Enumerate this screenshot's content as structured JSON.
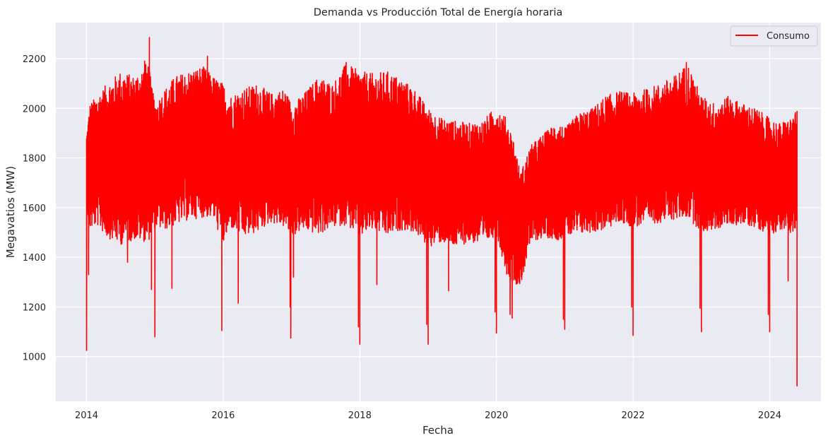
{
  "chart_data": {
    "type": "line",
    "title": "Demanda vs Producción Total de Energía horaria",
    "xlabel": "Fecha",
    "ylabel": "Megavatios (MW)",
    "xlim": [
      2013.55,
      2024.75
    ],
    "ylim": [
      820,
      2345
    ],
    "x_ticks": [
      2014,
      2016,
      2018,
      2020,
      2022,
      2024
    ],
    "x_tick_labels": [
      "2014",
      "2016",
      "2018",
      "2020",
      "2022",
      "2024"
    ],
    "y_ticks": [
      1000,
      1200,
      1400,
      1600,
      1800,
      2000,
      2200
    ],
    "y_tick_labels": [
      "1000",
      "1200",
      "1400",
      "1600",
      "1800",
      "2000",
      "2200"
    ],
    "grid": true,
    "legend": {
      "position": "top-right"
    },
    "background_color": "#EAEAF2",
    "series": [
      {
        "name": "Consumo",
        "color": "#FF0000",
        "envelope_x": [
          2014.0,
          2014.05,
          2014.15,
          2014.3,
          2014.5,
          2014.7,
          2014.9,
          2015.0,
          2015.15,
          2015.3,
          2015.5,
          2015.7,
          2015.85,
          2016.0,
          2016.1,
          2016.3,
          2016.5,
          2016.7,
          2016.9,
          2017.0,
          2017.15,
          2017.4,
          2017.6,
          2017.8,
          2018.0,
          2018.2,
          2018.4,
          2018.6,
          2018.8,
          2019.0,
          2019.2,
          2019.4,
          2019.6,
          2019.8,
          2020.0,
          2020.15,
          2020.25,
          2020.35,
          2020.5,
          2020.7,
          2020.9,
          2021.0,
          2021.2,
          2021.4,
          2021.6,
          2021.8,
          2022.0,
          2022.2,
          2022.4,
          2022.6,
          2022.8,
          2023.0,
          2023.2,
          2023.4,
          2023.6,
          2023.8,
          2024.0,
          2024.15,
          2024.3,
          2024.4
        ],
        "envelope_max": [
          1900,
          2020,
          2050,
          2100,
          2150,
          2130,
          2190,
          2020,
          2080,
          2130,
          2150,
          2170,
          2130,
          2100,
          2050,
          2080,
          2100,
          2060,
          2080,
          2020,
          2050,
          2130,
          2100,
          2180,
          2150,
          2140,
          2150,
          2120,
          2080,
          2000,
          1960,
          1950,
          1940,
          1950,
          2010,
          1960,
          1880,
          1740,
          1850,
          1900,
          1950,
          1920,
          1980,
          2000,
          2050,
          2070,
          2060,
          2080,
          2100,
          2130,
          2180,
          2050,
          2020,
          2050,
          2020,
          2000,
          1960,
          1940,
          1960,
          1990
        ],
        "envelope_min": [
          1600,
          1510,
          1530,
          1480,
          1450,
          1470,
          1460,
          1520,
          1510,
          1530,
          1550,
          1560,
          1560,
          1450,
          1520,
          1480,
          1500,
          1540,
          1520,
          1480,
          1510,
          1490,
          1520,
          1530,
          1480,
          1510,
          1480,
          1510,
          1500,
          1440,
          1460,
          1440,
          1460,
          1450,
          1490,
          1330,
          1300,
          1280,
          1460,
          1480,
          1470,
          1480,
          1490,
          1500,
          1510,
          1540,
          1520,
          1530,
          1540,
          1550,
          1560,
          1500,
          1510,
          1530,
          1530,
          1520,
          1490,
          1510,
          1500,
          1500
        ],
        "dips": [
          {
            "x": 2014.0,
            "y": 1025
          },
          {
            "x": 2014.03,
            "y": 1330
          },
          {
            "x": 2014.6,
            "y": 1380
          },
          {
            "x": 2014.95,
            "y": 1270
          },
          {
            "x": 2015.0,
            "y": 1080
          },
          {
            "x": 2015.25,
            "y": 1275
          },
          {
            "x": 2015.98,
            "y": 1105
          },
          {
            "x": 2016.22,
            "y": 1215
          },
          {
            "x": 2016.98,
            "y": 1200
          },
          {
            "x": 2016.99,
            "y": 1075
          },
          {
            "x": 2017.03,
            "y": 1320
          },
          {
            "x": 2017.98,
            "y": 1120
          },
          {
            "x": 2018.0,
            "y": 1050
          },
          {
            "x": 2018.25,
            "y": 1290
          },
          {
            "x": 2018.98,
            "y": 1130
          },
          {
            "x": 2019.0,
            "y": 1050
          },
          {
            "x": 2019.3,
            "y": 1265
          },
          {
            "x": 2019.98,
            "y": 1180
          },
          {
            "x": 2020.0,
            "y": 1095
          },
          {
            "x": 2020.2,
            "y": 1170
          },
          {
            "x": 2020.23,
            "y": 1155
          },
          {
            "x": 2020.98,
            "y": 1150
          },
          {
            "x": 2021.0,
            "y": 1110
          },
          {
            "x": 2021.98,
            "y": 1200
          },
          {
            "x": 2022.0,
            "y": 1085
          },
          {
            "x": 2022.98,
            "y": 1195
          },
          {
            "x": 2023.0,
            "y": 1100
          },
          {
            "x": 2023.98,
            "y": 1170
          },
          {
            "x": 2024.0,
            "y": 1100
          },
          {
            "x": 2024.27,
            "y": 1305
          },
          {
            "x": 2024.4,
            "y": 880
          }
        ],
        "spikes": [
          {
            "x": 2014.85,
            "y": 2190
          },
          {
            "x": 2014.92,
            "y": 2285
          },
          {
            "x": 2015.77,
            "y": 2210
          },
          {
            "x": 2017.8,
            "y": 2185
          },
          {
            "x": 2022.78,
            "y": 2185
          }
        ]
      }
    ]
  }
}
